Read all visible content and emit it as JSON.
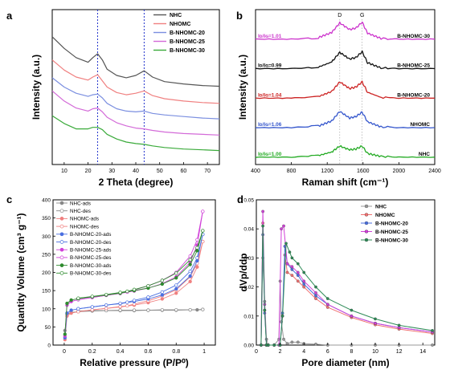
{
  "chart_data": [
    {
      "panel_label": "a",
      "type": "line",
      "xlabel": "2 Theta (degree)",
      "ylabel": "Intensity (a.u.)",
      "xlim": [
        5,
        75
      ],
      "xticks": [
        10,
        20,
        30,
        40,
        50,
        60,
        70
      ],
      "y_ticks_shown": false,
      "reference_lines_x": [
        24,
        43.5
      ],
      "legend_position": "top-right",
      "series": [
        {
          "name": "NHC",
          "color": "#555555",
          "x": [
            5,
            10,
            15,
            20,
            22,
            24,
            26,
            28,
            32,
            36,
            40,
            43.5,
            47,
            52,
            60,
            68,
            75
          ],
          "y": [
            16.5,
            15.0,
            13.8,
            13.2,
            13.8,
            14.3,
            13.5,
            12.3,
            11.5,
            11.2,
            11.5,
            12.1,
            11.3,
            10.7,
            10.4,
            10.2,
            10.1
          ]
        },
        {
          "name": "NHOMC",
          "color": "#f08080",
          "x": [
            5,
            10,
            15,
            20,
            22,
            24,
            26,
            28,
            32,
            36,
            40,
            43.5,
            47,
            52,
            60,
            68,
            75
          ],
          "y": [
            13.5,
            12.2,
            11.3,
            10.9,
            11.3,
            11.6,
            10.8,
            10.0,
            9.3,
            9.0,
            9.2,
            9.5,
            8.9,
            8.5,
            8.2,
            8.0,
            7.9
          ]
        },
        {
          "name": "B-NHOMC-20",
          "color": "#7b8fe0",
          "x": [
            5,
            10,
            15,
            20,
            22,
            24,
            26,
            28,
            32,
            36,
            40,
            43.5,
            47,
            52,
            60,
            68,
            75
          ],
          "y": [
            11.2,
            10.0,
            9.2,
            8.8,
            9.0,
            9.1,
            8.6,
            7.9,
            7.2,
            6.9,
            6.8,
            6.9,
            6.6,
            6.4,
            6.2,
            6.0,
            5.9
          ]
        },
        {
          "name": "B-NHOMC-25",
          "color": "#d36ad8",
          "x": [
            5,
            10,
            15,
            20,
            22,
            24,
            26,
            28,
            32,
            36,
            40,
            43.5,
            47,
            52,
            60,
            68,
            75
          ],
          "y": [
            9.5,
            8.2,
            7.3,
            6.9,
            7.2,
            7.3,
            6.8,
            6.1,
            5.4,
            5.0,
            4.7,
            4.6,
            4.4,
            4.2,
            4.0,
            3.9,
            3.8
          ]
        },
        {
          "name": "B-NHOMC-30",
          "color": "#3aaa3a",
          "x": [
            5,
            10,
            15,
            20,
            22,
            24,
            26,
            28,
            32,
            36,
            40,
            43.5,
            47,
            52,
            60,
            68,
            75
          ],
          "y": [
            6.3,
            5.3,
            4.6,
            4.6,
            4.8,
            4.8,
            4.5,
            3.9,
            3.3,
            2.9,
            2.7,
            2.6,
            2.4,
            2.2,
            2.0,
            1.9,
            1.8
          ]
        }
      ]
    },
    {
      "panel_label": "b",
      "type": "line",
      "xlabel": "Raman shift (cm⁻¹)",
      "ylabel": "Intensity (a.u.)",
      "xlim": [
        400,
        2400
      ],
      "xticks": [
        400,
        800,
        1200,
        1600,
        2000,
        2400
      ],
      "y_ticks_shown": false,
      "peak_labels": [
        {
          "text": "D",
          "x": 1340
        },
        {
          "text": "G",
          "x": 1590
        }
      ],
      "series": [
        {
          "name": "B-NHOMC-30",
          "color": "#cc33cc",
          "ratio_label": "Iᴅ/Iɢ=1.01",
          "x": [
            400,
            800,
            1100,
            1250,
            1340,
            1450,
            1520,
            1590,
            1650,
            1800,
            2000,
            2400
          ],
          "y": [
            17.0,
            17.0,
            17.2,
            17.9,
            19.2,
            18.3,
            18.5,
            19.3,
            17.8,
            17.1,
            17.0,
            17.0
          ]
        },
        {
          "name": "B-NHOMC-25",
          "color": "#111111",
          "ratio_label": "Iᴅ/Iɢ=0.99",
          "x": [
            400,
            800,
            1100,
            1250,
            1340,
            1450,
            1520,
            1590,
            1650,
            1800,
            2000,
            2400
          ],
          "y": [
            13.0,
            13.0,
            13.2,
            13.9,
            15.2,
            14.3,
            14.5,
            15.3,
            13.8,
            13.1,
            13.0,
            13.0
          ]
        },
        {
          "name": "B-NHOMC-20",
          "color": "#cc2222",
          "ratio_label": "Iᴅ/Iɢ=1.04",
          "x": [
            400,
            800,
            1100,
            1250,
            1340,
            1450,
            1520,
            1590,
            1650,
            1800,
            2000,
            2400
          ],
          "y": [
            9.0,
            9.0,
            9.2,
            9.9,
            11.2,
            10.3,
            10.5,
            11.2,
            9.8,
            9.1,
            9.0,
            9.0
          ]
        },
        {
          "name": "NHOMC",
          "color": "#3355cc",
          "ratio_label": "Iᴅ/Iɢ=1.06",
          "x": [
            400,
            800,
            1100,
            1250,
            1340,
            1450,
            1520,
            1590,
            1650,
            1800,
            2000,
            2400
          ],
          "y": [
            5.0,
            5.0,
            5.2,
            5.9,
            7.2,
            6.3,
            6.5,
            7.1,
            5.8,
            5.1,
            5.0,
            5.0
          ]
        },
        {
          "name": "NHC",
          "color": "#22aa22",
          "ratio_label": "Iᴅ/Iɢ=1.00",
          "x": [
            400,
            800,
            1100,
            1250,
            1340,
            1450,
            1520,
            1590,
            1650,
            1800,
            2000,
            2400
          ],
          "y": [
            1.0,
            1.0,
            1.2,
            1.7,
            2.5,
            2.0,
            2.1,
            2.5,
            1.5,
            1.1,
            1.0,
            1.0
          ]
        }
      ]
    },
    {
      "panel_label": "c",
      "type": "line",
      "xlabel": "Relative pressure (P/P⁰)",
      "ylabel": "Quantity Volume (cm³ g⁻¹)",
      "xlim": [
        -0.08,
        1.08
      ],
      "ylim": [
        0,
        400
      ],
      "xticks": [
        0.0,
        0.2,
        0.4,
        0.6,
        0.8,
        1.0
      ],
      "yticks": [
        0,
        50,
        100,
        150,
        200,
        250,
        300,
        350,
        400
      ],
      "legend_position": "top-left",
      "series": [
        {
          "name": "NHC-ads",
          "color": "#888888",
          "filled": true,
          "x": [
            0.005,
            0.02,
            0.05,
            0.1,
            0.2,
            0.3,
            0.4,
            0.5,
            0.6,
            0.7,
            0.8,
            0.9,
            0.95,
            0.99
          ],
          "y": [
            40,
            85,
            90,
            92,
            94,
            95,
            95,
            95,
            96,
            96,
            96,
            97,
            97,
            98
          ]
        },
        {
          "name": "NHC-des",
          "color": "#888888",
          "filled": false,
          "x": [
            0.99,
            0.9,
            0.8,
            0.7,
            0.6,
            0.5,
            0.4,
            0.3,
            0.2,
            0.1
          ],
          "y": [
            98,
            97,
            97,
            97,
            96,
            96,
            96,
            95,
            95,
            94
          ]
        },
        {
          "name": "NHOMC-ads",
          "color": "#f08080",
          "filled": true,
          "x": [
            0.005,
            0.02,
            0.05,
            0.1,
            0.2,
            0.3,
            0.4,
            0.5,
            0.6,
            0.7,
            0.8,
            0.9,
            0.95,
            0.99
          ],
          "y": [
            15,
            80,
            88,
            92,
            97,
            101,
            105,
            110,
            117,
            127,
            143,
            175,
            215,
            285
          ]
        },
        {
          "name": "NHOMC-des",
          "color": "#f08080",
          "filled": false,
          "x": [
            0.99,
            0.95,
            0.9,
            0.8,
            0.7,
            0.6,
            0.5,
            0.45,
            0.4,
            0.3,
            0.2,
            0.1
          ],
          "y": [
            285,
            225,
            188,
            152,
            135,
            122,
            113,
            108,
            106,
            101,
            97,
            92
          ]
        },
        {
          "name": "B-NHOMC-20-ads",
          "color": "#4a6fe0",
          "filled": true,
          "x": [
            0.005,
            0.02,
            0.05,
            0.1,
            0.2,
            0.3,
            0.4,
            0.5,
            0.6,
            0.7,
            0.8,
            0.9,
            0.95,
            0.99
          ],
          "y": [
            20,
            88,
            96,
            100,
            105,
            110,
            114,
            120,
            127,
            138,
            155,
            190,
            232,
            305
          ]
        },
        {
          "name": "B-NHOMC-20-des",
          "color": "#4a6fe0",
          "filled": false,
          "x": [
            0.99,
            0.95,
            0.9,
            0.8,
            0.7,
            0.6,
            0.5,
            0.45,
            0.4,
            0.3,
            0.2,
            0.1
          ],
          "y": [
            305,
            240,
            203,
            165,
            146,
            132,
            123,
            118,
            115,
            110,
            105,
            100
          ]
        },
        {
          "name": "B-NHOMC-25-ads",
          "color": "#d040d8",
          "filled": true,
          "x": [
            0.005,
            0.02,
            0.05,
            0.1,
            0.2,
            0.3,
            0.4,
            0.5,
            0.6,
            0.7,
            0.8,
            0.9,
            0.95,
            0.99
          ],
          "y": [
            25,
            110,
            120,
            125,
            131,
            137,
            142,
            149,
            157,
            169,
            188,
            228,
            275,
            368
          ]
        },
        {
          "name": "B-NHOMC-25-des",
          "color": "#d040d8",
          "filled": false,
          "x": [
            0.99,
            0.95,
            0.9,
            0.8,
            0.7,
            0.6,
            0.5,
            0.45,
            0.4,
            0.3,
            0.2,
            0.1
          ],
          "y": [
            368,
            290,
            245,
            200,
            178,
            163,
            152,
            146,
            143,
            137,
            131,
            125
          ]
        },
        {
          "name": "B-NHOMC-30-ads",
          "color": "#2e8b2e",
          "filled": true,
          "x": [
            0.005,
            0.02,
            0.05,
            0.1,
            0.2,
            0.3,
            0.4,
            0.5,
            0.6,
            0.7,
            0.8,
            0.9,
            0.95,
            0.99
          ],
          "y": [
            30,
            115,
            124,
            128,
            133,
            138,
            143,
            150,
            157,
            168,
            185,
            222,
            260,
            315
          ]
        },
        {
          "name": "B-NHOMC-30-des",
          "color": "#2e8b2e",
          "filled": false,
          "x": [
            0.99,
            0.95,
            0.9,
            0.8,
            0.7,
            0.6,
            0.5,
            0.45,
            0.4,
            0.3,
            0.2,
            0.1
          ],
          "y": [
            315,
            268,
            235,
            198,
            178,
            163,
            153,
            148,
            145,
            139,
            134,
            129
          ]
        }
      ]
    },
    {
      "panel_label": "d",
      "type": "line",
      "xlabel": "Pore diameter (nm)",
      "ylabel": "dVp/ddp",
      "xlim": [
        0,
        15
      ],
      "ylim": [
        0,
        0.05
      ],
      "xticks": [
        0,
        2,
        4,
        6,
        8,
        10,
        12,
        14
      ],
      "yticks": [
        0.0,
        0.01,
        0.02,
        0.03,
        0.04,
        0.05
      ],
      "legend_position": "top-right",
      "series": [
        {
          "name": "NHC",
          "color": "#999999",
          "x": [
            0.4,
            0.55,
            0.7,
            0.85,
            1.0,
            1.5,
            1.9,
            2.0,
            2.1,
            2.3,
            2.6,
            3.0,
            3.5,
            4.0,
            5.0,
            6.0,
            8.0,
            10.0,
            12.0,
            14.8
          ],
          "y": [
            0.0,
            0.03,
            0.015,
            0.002,
            0.0,
            0.0,
            0.002,
            0.022,
            0.008,
            0.002,
            0.0005,
            0.001,
            0.001,
            0.0005,
            0.0003,
            0.0,
            0.0,
            0.0,
            0.0,
            0.0
          ]
        },
        {
          "name": "NHOMC",
          "color": "#f07070",
          "x": [
            0.4,
            0.55,
            0.7,
            0.85,
            1.0,
            1.5,
            2.0,
            2.2,
            2.4,
            2.6,
            3.0,
            3.5,
            4.0,
            5.0,
            6.0,
            8.0,
            10.0,
            12.0,
            14.8
          ],
          "y": [
            0.0,
            0.042,
            0.012,
            0.0,
            0.0,
            0.0,
            0.0,
            0.01,
            0.031,
            0.025,
            0.024,
            0.022,
            0.02,
            0.016,
            0.013,
            0.0095,
            0.007,
            0.0055,
            0.004
          ]
        },
        {
          "name": "B-NHOMC-20",
          "color": "#4a6fe0",
          "x": [
            0.4,
            0.55,
            0.7,
            0.85,
            1.0,
            1.5,
            2.0,
            2.2,
            2.4,
            2.6,
            3.0,
            3.5,
            4.0,
            5.0,
            6.0,
            8.0,
            10.0,
            12.0,
            14.8
          ],
          "y": [
            0.0,
            0.038,
            0.011,
            0.0,
            0.0,
            0.0,
            0.0,
            0.011,
            0.034,
            0.028,
            0.026,
            0.024,
            0.021,
            0.017,
            0.014,
            0.01,
            0.0075,
            0.006,
            0.0045
          ]
        },
        {
          "name": "B-NHOMC-25",
          "color": "#d040d8",
          "x": [
            0.4,
            0.55,
            0.7,
            0.85,
            1.0,
            1.5,
            1.9,
            2.1,
            2.3,
            2.6,
            3.0,
            3.5,
            4.0,
            5.0,
            6.0,
            8.0,
            10.0,
            12.0,
            14.8
          ],
          "y": [
            0.0,
            0.046,
            0.014,
            0.0,
            0.0,
            0.0,
            0.0,
            0.04,
            0.041,
            0.028,
            0.027,
            0.025,
            0.022,
            0.018,
            0.014,
            0.01,
            0.0075,
            0.006,
            0.0045
          ]
        },
        {
          "name": "B-NHOMC-30",
          "color": "#2e8b57",
          "x": [
            0.4,
            0.55,
            0.7,
            0.85,
            1.0,
            1.5,
            2.0,
            2.2,
            2.5,
            2.8,
            3.0,
            3.5,
            4.0,
            5.0,
            6.0,
            8.0,
            10.0,
            12.0,
            14.8
          ],
          "y": [
            0.0,
            0.041,
            0.012,
            0.0,
            0.0,
            0.0,
            0.0,
            0.01,
            0.035,
            0.032,
            0.03,
            0.028,
            0.025,
            0.02,
            0.016,
            0.012,
            0.009,
            0.0068,
            0.005
          ]
        }
      ]
    }
  ]
}
